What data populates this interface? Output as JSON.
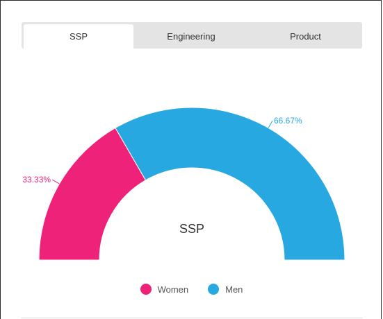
{
  "tabs": [
    {
      "label": "SSP",
      "active": true
    },
    {
      "label": "Engineering",
      "active": false
    },
    {
      "label": "Product",
      "active": false
    }
  ],
  "chart_data": {
    "type": "pie",
    "variant": "semi-donut",
    "center_label": "SSP",
    "slices": [
      {
        "name": "Women",
        "value": 33.33,
        "label": "33.33%",
        "color": "#ee2279"
      },
      {
        "name": "Men",
        "value": 66.67,
        "label": "66.67%",
        "color": "#27a8e0"
      }
    ],
    "legend_placement": "bottom"
  }
}
